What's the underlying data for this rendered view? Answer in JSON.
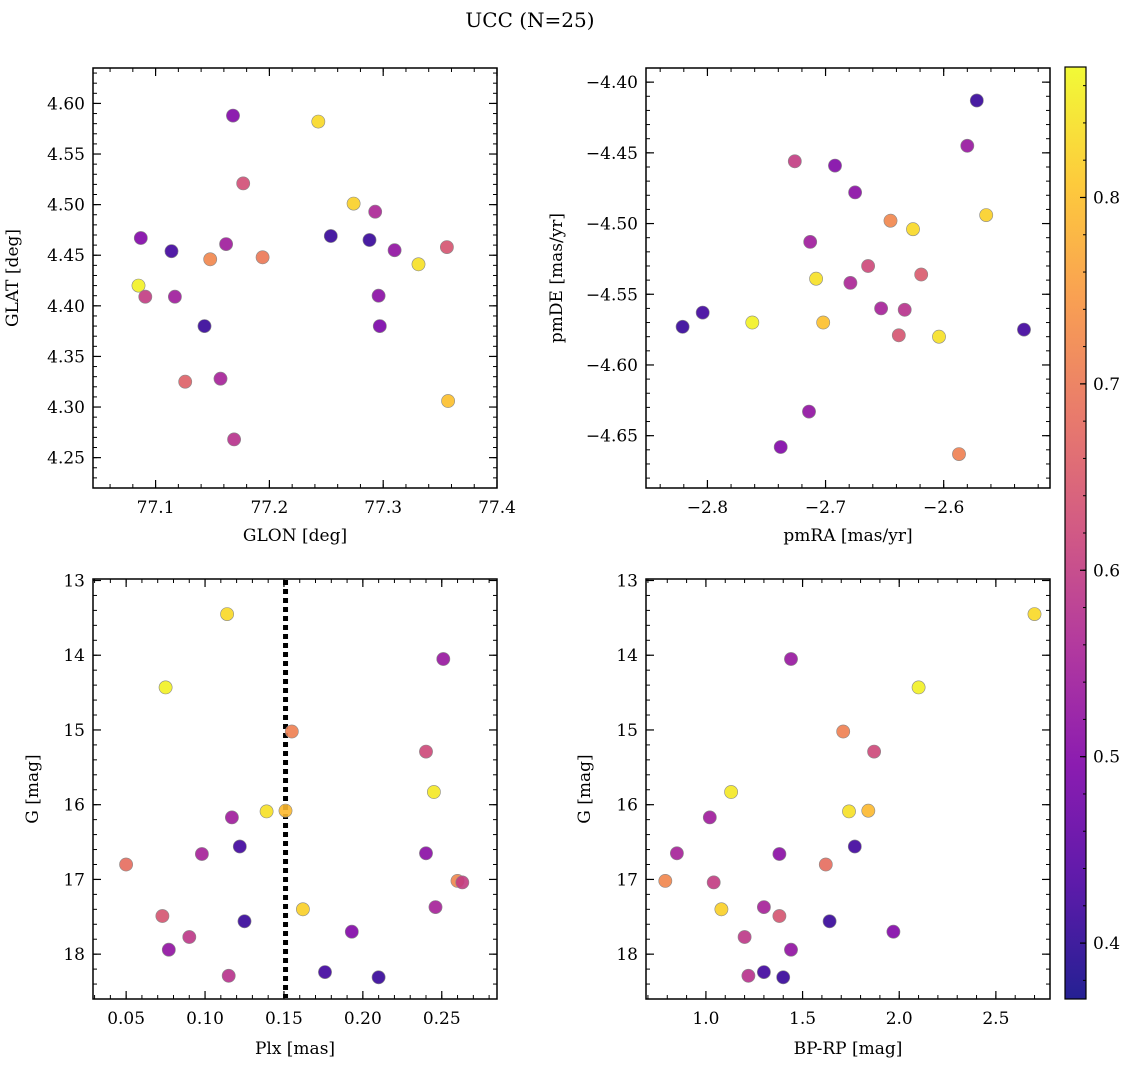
{
  "figure": {
    "suptitle": "UCC (N=25)",
    "colorbar": {
      "colormap": "plasma",
      "range": [
        0.37,
        0.87
      ],
      "ticks": [
        0.4,
        0.5,
        0.6,
        0.7,
        0.8
      ],
      "tick_labels": [
        "0.4",
        "0.5",
        "0.6",
        "0.7",
        "0.8"
      ]
    },
    "marker": {
      "edge_color": "#8a8a8a",
      "alpha": 0.9
    }
  },
  "chart_data": [
    {
      "type": "scatter",
      "id": "glon-glat",
      "xlabel": "GLON [deg]",
      "ylabel": "GLAT [deg]",
      "xlim": [
        77.045,
        77.4
      ],
      "ylim": [
        4.22,
        4.635
      ],
      "xticks": [
        77.1,
        77.2,
        77.3,
        77.4
      ],
      "xtick_labels": [
        "77.1",
        "77.2",
        "77.3",
        "77.4"
      ],
      "yticks": [
        4.25,
        4.3,
        4.35,
        4.4,
        4.45,
        4.5,
        4.55,
        4.6
      ],
      "ytick_labels": [
        "4.25",
        "4.30",
        "4.35",
        "4.40",
        "4.45",
        "4.50",
        "4.55",
        "4.60"
      ],
      "x": [
        77.085,
        77.117,
        77.114,
        77.143,
        77.254,
        77.288,
        77.087,
        77.168,
        77.162,
        77.296,
        77.293,
        77.297,
        77.31,
        77.157,
        77.091,
        77.177,
        77.356,
        77.126,
        77.169,
        77.148,
        77.194,
        77.357,
        77.243,
        77.274,
        77.331
      ],
      "y": [
        4.42,
        4.409,
        4.454,
        4.38,
        4.469,
        4.465,
        4.467,
        4.588,
        4.461,
        4.41,
        4.493,
        4.38,
        4.455,
        4.328,
        4.409,
        4.521,
        4.458,
        4.325,
        4.268,
        4.446,
        4.448,
        4.306,
        4.582,
        4.501,
        4.441
      ],
      "c": [
        0.86,
        0.54,
        0.42,
        0.41,
        0.41,
        0.41,
        0.5,
        0.5,
        0.54,
        0.51,
        0.56,
        0.49,
        0.52,
        0.55,
        0.6,
        0.63,
        0.64,
        0.66,
        0.58,
        0.72,
        0.7,
        0.8,
        0.83,
        0.82,
        0.84
      ]
    },
    {
      "type": "scatter",
      "id": "pmra-pmde",
      "xlabel": "pmRA [mas/yr]",
      "ylabel": "pmDE [mas/yr]",
      "xlim": [
        -2.852,
        -2.51
      ],
      "ylim": [
        -4.687,
        -4.39
      ],
      "xticks": [
        -2.8,
        -2.7,
        -2.6
      ],
      "xtick_labels": [
        "−2.8",
        "−2.7",
        "−2.6"
      ],
      "yticks": [
        -4.65,
        -4.6,
        -4.55,
        -4.5,
        -4.45,
        -4.4
      ],
      "ytick_labels": [
        "−4.65",
        "−4.60",
        "−4.55",
        "−4.50",
        "−4.45",
        "−4.40"
      ],
      "x": [
        -2.821,
        -2.804,
        -2.572,
        -2.532,
        -2.738,
        -2.692,
        -2.675,
        -2.714,
        -2.713,
        -2.58,
        -2.726,
        -2.679,
        -2.653,
        -2.633,
        -2.664,
        -2.638,
        -2.619,
        -2.645,
        -2.587,
        -2.702,
        -2.708,
        -2.762,
        -2.604,
        -2.626,
        -2.564
      ],
      "y": [
        -4.573,
        -4.563,
        -4.413,
        -4.575,
        -4.658,
        -4.459,
        -4.478,
        -4.633,
        -4.513,
        -4.445,
        -4.456,
        -4.542,
        -4.56,
        -4.561,
        -4.53,
        -4.579,
        -4.536,
        -4.498,
        -4.663,
        -4.57,
        -4.539,
        -4.57,
        -4.58,
        -4.504,
        -4.494
      ],
      "c": [
        0.41,
        0.42,
        0.41,
        0.42,
        0.5,
        0.5,
        0.51,
        0.52,
        0.54,
        0.53,
        0.6,
        0.56,
        0.55,
        0.58,
        0.62,
        0.64,
        0.65,
        0.72,
        0.71,
        0.8,
        0.84,
        0.86,
        0.84,
        0.83,
        0.82
      ]
    },
    {
      "type": "scatter",
      "id": "plx-g",
      "xlabel": "Plx [mas]",
      "ylabel": "G [mag]",
      "xlim": [
        0.029,
        0.285
      ],
      "ylim": [
        18.6,
        12.98
      ],
      "y_inverted": true,
      "xticks": [
        0.05,
        0.1,
        0.15,
        0.2,
        0.25
      ],
      "xtick_labels": [
        "0.05",
        "0.10",
        "0.15",
        "0.20",
        "0.25"
      ],
      "yticks": [
        13,
        14,
        15,
        16,
        17,
        18
      ],
      "ytick_labels": [
        "13",
        "14",
        "15",
        "16",
        "17",
        "18"
      ],
      "vline": {
        "x": 0.151,
        "style": "dotted"
      },
      "x": [
        0.114,
        0.075,
        0.251,
        0.155,
        0.24,
        0.245,
        0.117,
        0.139,
        0.151,
        0.122,
        0.098,
        0.24,
        0.05,
        0.26,
        0.263,
        0.162,
        0.073,
        0.125,
        0.246,
        0.09,
        0.077,
        0.193,
        0.115,
        0.176,
        0.21
      ],
      "y": [
        13.45,
        14.43,
        14.05,
        15.02,
        15.29,
        15.83,
        16.17,
        16.09,
        16.08,
        16.56,
        16.66,
        16.65,
        16.8,
        17.02,
        17.04,
        17.4,
        17.49,
        17.56,
        17.37,
        17.77,
        17.94,
        17.7,
        18.29,
        18.24,
        18.31
      ],
      "c": [
        0.83,
        0.86,
        0.53,
        0.71,
        0.62,
        0.85,
        0.54,
        0.84,
        0.79,
        0.42,
        0.55,
        0.51,
        0.68,
        0.72,
        0.6,
        0.82,
        0.64,
        0.41,
        0.55,
        0.59,
        0.52,
        0.5,
        0.58,
        0.42,
        0.41
      ]
    },
    {
      "type": "scatter",
      "id": "bprp-g",
      "xlabel": "BP-RP [mag]",
      "ylabel": "G [mag]",
      "xlim": [
        0.69,
        2.78
      ],
      "ylim": [
        18.6,
        12.98
      ],
      "y_inverted": true,
      "xticks": [
        1.0,
        1.5,
        2.0,
        2.5
      ],
      "xtick_labels": [
        "1.0",
        "1.5",
        "2.0",
        "2.5"
      ],
      "yticks": [
        13,
        14,
        15,
        16,
        17,
        18
      ],
      "ytick_labels": [
        "13",
        "14",
        "15",
        "16",
        "17",
        "18"
      ],
      "x": [
        2.7,
        2.1,
        1.44,
        1.71,
        1.87,
        1.13,
        1.02,
        1.74,
        1.84,
        1.77,
        1.38,
        0.85,
        1.62,
        0.79,
        1.04,
        1.08,
        1.3,
        1.38,
        1.64,
        1.2,
        1.44,
        1.97,
        1.22,
        1.3,
        1.4
      ],
      "y": [
        13.45,
        14.43,
        14.05,
        15.02,
        15.29,
        15.83,
        16.17,
        16.09,
        16.08,
        16.56,
        16.66,
        16.65,
        16.8,
        17.02,
        17.04,
        17.4,
        17.37,
        17.49,
        17.56,
        17.77,
        17.94,
        17.7,
        18.29,
        18.24,
        18.31
      ],
      "c": [
        0.83,
        0.86,
        0.53,
        0.71,
        0.62,
        0.85,
        0.54,
        0.84,
        0.79,
        0.42,
        0.51,
        0.55,
        0.68,
        0.72,
        0.6,
        0.82,
        0.55,
        0.64,
        0.41,
        0.59,
        0.52,
        0.5,
        0.58,
        0.42,
        0.41
      ]
    }
  ]
}
